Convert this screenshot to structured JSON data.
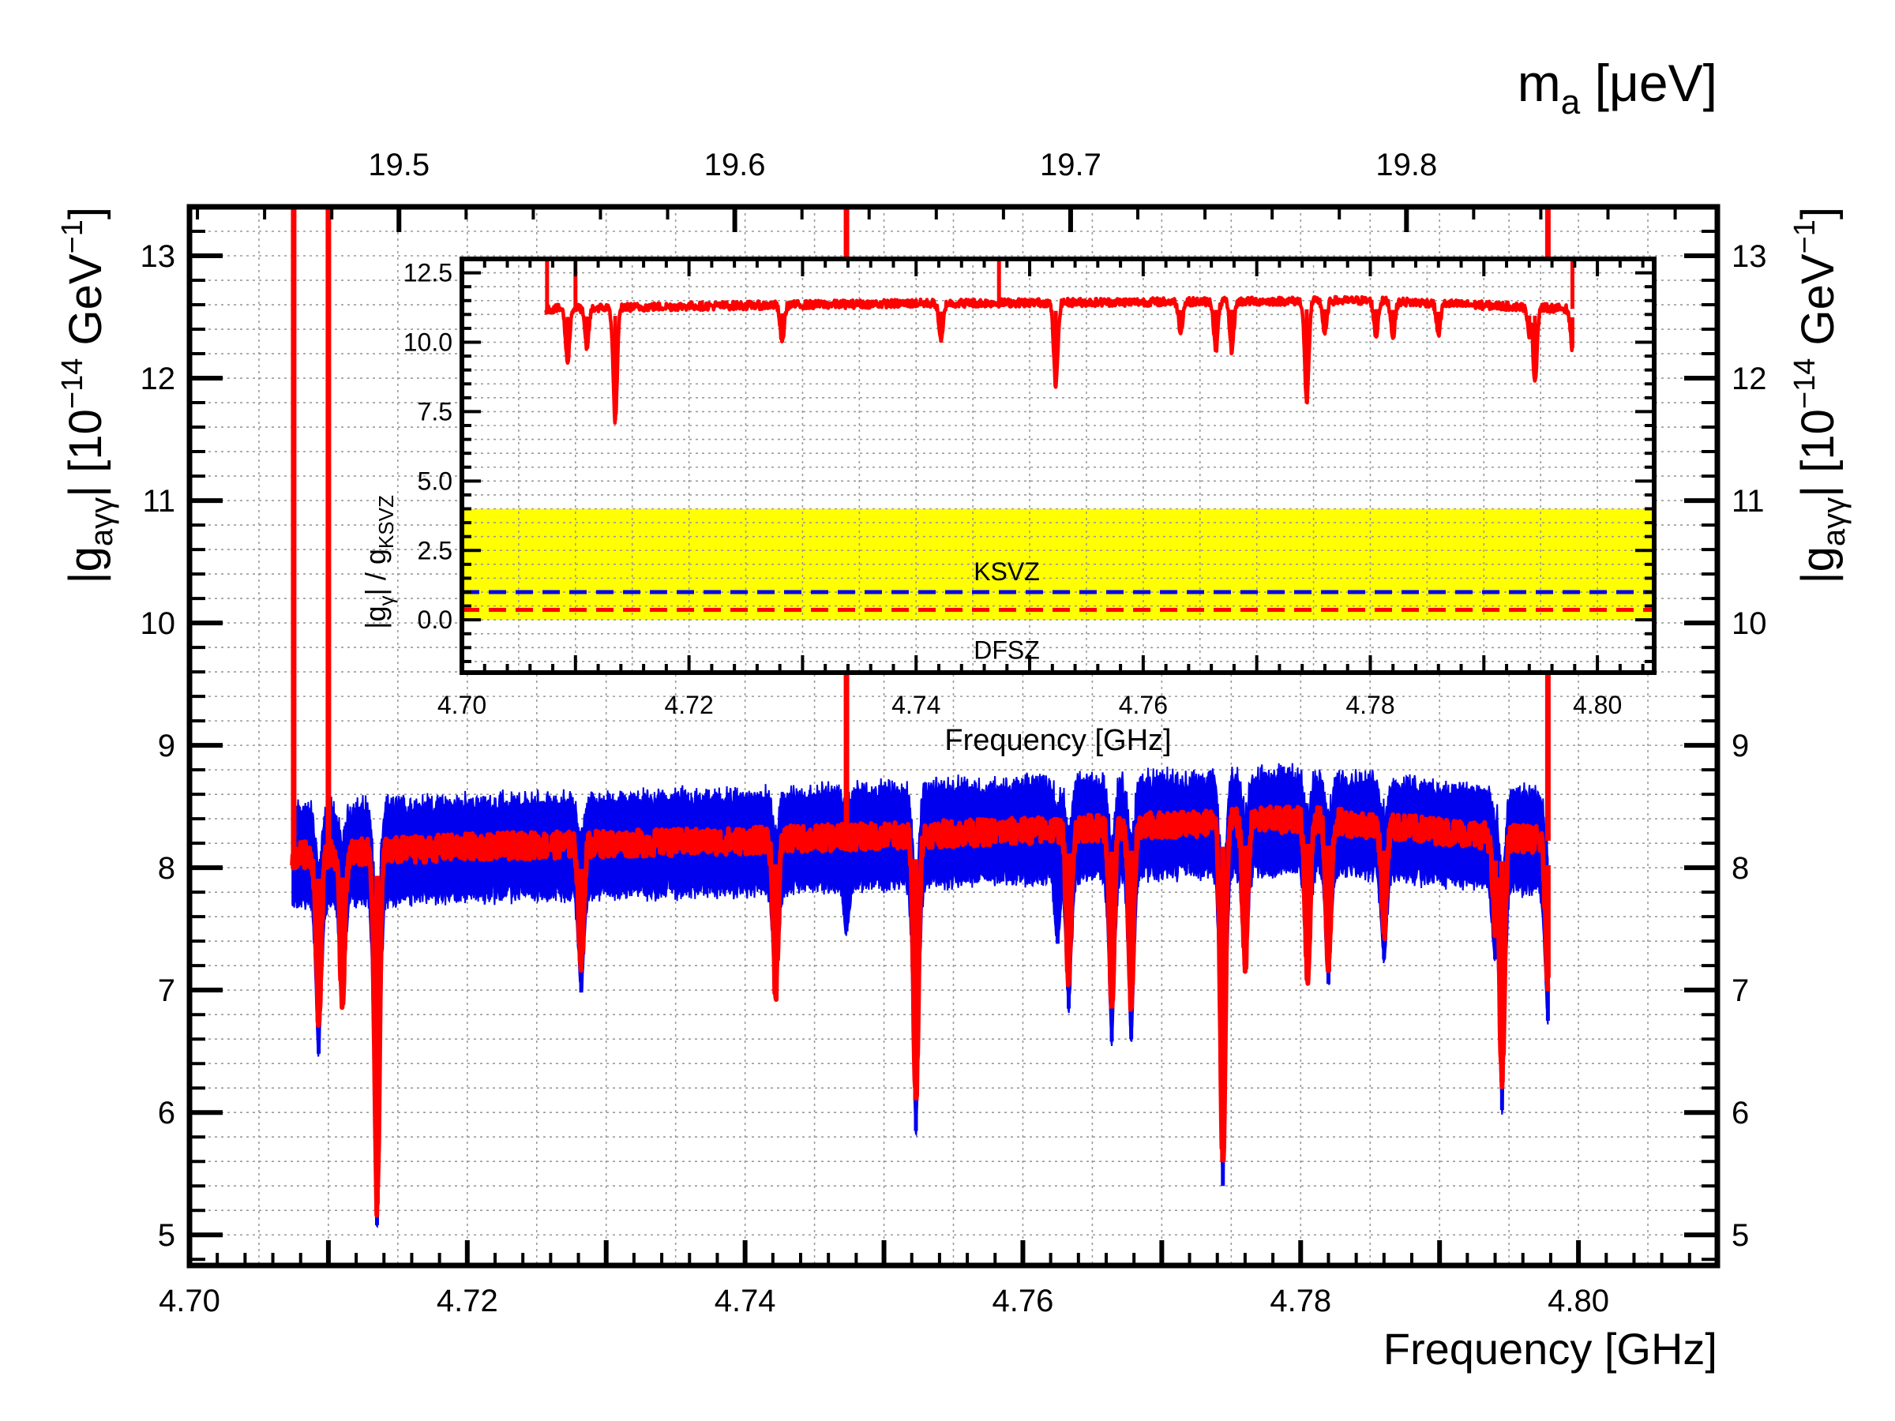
{
  "chart_data": [
    {
      "type": "line",
      "xlabel": "Frequency [GHz]",
      "ylabel_main": "|g",
      "ylabel_sub": "aγγ",
      "ylabel_unit": "|  [10",
      "ylabel_exp": "−14",
      "ylabel_gev": " GeV",
      "ylabel_gev_exp": "−1",
      "ylabel_close": "]",
      "top_axis_label": "m",
      "top_axis_label_sub": "a",
      "top_axis_label_unit": " [μeV]",
      "xlim": [
        4.7,
        4.81
      ],
      "ylim": [
        4.75,
        13.4
      ],
      "x_ticks": [
        4.7,
        4.72,
        4.74,
        4.76,
        4.78,
        4.8
      ],
      "x_tick_labels": [
        "4.70",
        "4.72",
        "4.74",
        "4.76",
        "4.78",
        "4.80"
      ],
      "y_ticks": [
        5,
        6,
        7,
        8,
        9,
        10,
        11,
        12,
        13
      ],
      "y_tick_labels": [
        "5",
        "6",
        "7",
        "8",
        "9",
        "10",
        "11",
        "12",
        "13"
      ],
      "top_ticks_ueV": [
        19.5,
        19.6,
        19.7,
        19.8
      ],
      "top_tick_labels": [
        "19.5",
        "19.6",
        "19.7",
        "19.8"
      ],
      "grid": true,
      "series": [
        {
          "color": "#0000ee",
          "style": "band",
          "x_range": [
            4.7074,
            4.7978
          ],
          "baseline_center": [
            [
              4.7074,
              8.1
            ],
            [
              4.72,
              8.15
            ],
            [
              4.74,
              8.2
            ],
            [
              4.76,
              8.3
            ],
            [
              4.78,
              8.38
            ],
            [
              4.7978,
              8.2
            ]
          ],
          "half_width": 0.38,
          "dips": [
            [
              4.7093,
              6.48
            ],
            [
              4.711,
              6.88
            ],
            [
              4.7135,
              5.08
            ],
            [
              4.7282,
              6.98
            ],
            [
              4.7422,
              6.98
            ],
            [
              4.7473,
              7.48
            ],
            [
              4.7523,
              5.85
            ],
            [
              4.7625,
              7.38
            ],
            [
              4.7633,
              6.85
            ],
            [
              4.7664,
              6.58
            ],
            [
              4.7678,
              6.6
            ],
            [
              4.7744,
              5.4
            ],
            [
              4.776,
              7.2
            ],
            [
              4.7805,
              7.1
            ],
            [
              4.782,
              7.05
            ],
            [
              4.786,
              7.25
            ],
            [
              4.794,
              7.25
            ],
            [
              4.7945,
              6.02
            ],
            [
              4.7978,
              6.75
            ]
          ]
        },
        {
          "color": "#ff0000",
          "style": "line",
          "x_range": [
            4.7074,
            4.7978
          ],
          "baseline": [
            [
              4.7074,
              8.1
            ],
            [
              4.72,
              8.17
            ],
            [
              4.74,
              8.22
            ],
            [
              4.76,
              8.3
            ],
            [
              4.78,
              8.4
            ],
            [
              4.7978,
              8.22
            ]
          ],
          "dips": [
            [
              4.7093,
              6.75
            ],
            [
              4.711,
              6.92
            ],
            [
              4.7135,
              5.25
            ],
            [
              4.7282,
              7.22
            ],
            [
              4.7422,
              7.0
            ],
            [
              4.7523,
              6.1
            ],
            [
              4.7633,
              7.1
            ],
            [
              4.7664,
              6.85
            ],
            [
              4.7678,
              6.85
            ],
            [
              4.7744,
              5.6
            ],
            [
              4.776,
              7.2
            ],
            [
              4.7805,
              7.1
            ],
            [
              4.782,
              7.15
            ],
            [
              4.786,
              7.5
            ],
            [
              4.794,
              7.5
            ],
            [
              4.7945,
              6.25
            ],
            [
              4.7978,
              7.1
            ]
          ],
          "spikes_to_top": [
            4.7075,
            4.71,
            4.7473,
            4.7978
          ]
        }
      ]
    },
    {
      "type": "line",
      "xlabel": "Frequency [GHz]",
      "ylabel_main": "|g",
      "ylabel_sub": "γ",
      "ylabel_mid": "| / g",
      "ylabel_sub2": "KSVZ",
      "xlim": [
        4.7,
        4.805
      ],
      "ylim": [
        -1.9,
        13.0
      ],
      "x_ticks": [
        4.7,
        4.72,
        4.74,
        4.76,
        4.78,
        4.8
      ],
      "x_tick_labels": [
        "4.70",
        "4.72",
        "4.74",
        "4.76",
        "4.78",
        "4.80"
      ],
      "y_ticks": [
        0.0,
        2.5,
        5.0,
        7.5,
        10.0,
        12.5
      ],
      "y_tick_labels": [
        "0.0",
        "2.5",
        "5.0",
        "7.5",
        "10.0",
        "12.5"
      ],
      "grid": true,
      "band": {
        "color": "#ffff00",
        "y_range": [
          0.0,
          4.0
        ]
      },
      "reference_lines": [
        {
          "name": "KSVZ",
          "y": 1.0,
          "color": "#0000ee",
          "style": "dashed"
        },
        {
          "name": "DFSZ",
          "y": 0.36,
          "color": "#ff0000",
          "style": "dashed"
        }
      ],
      "series": [
        {
          "color": "#ff0000",
          "x_range": [
            4.7074,
            4.7978
          ],
          "baseline": [
            [
              4.7074,
              11.2
            ],
            [
              4.72,
              11.3
            ],
            [
              4.74,
              11.4
            ],
            [
              4.76,
              11.45
            ],
            [
              4.78,
              11.5
            ],
            [
              4.7978,
              11.2
            ]
          ],
          "dips": [
            [
              4.7093,
              9.3
            ],
            [
              4.711,
              9.8
            ],
            [
              4.7135,
              7.2
            ],
            [
              4.7282,
              10.0
            ],
            [
              4.7422,
              10.0
            ],
            [
              4.7523,
              8.4
            ],
            [
              4.7633,
              10.4
            ],
            [
              4.7664,
              9.7
            ],
            [
              4.7678,
              9.7
            ],
            [
              4.7744,
              7.8
            ],
            [
              4.776,
              10.3
            ],
            [
              4.7805,
              10.2
            ],
            [
              4.782,
              10.2
            ],
            [
              4.786,
              10.3
            ],
            [
              4.794,
              10.3
            ],
            [
              4.7945,
              8.6
            ],
            [
              4.7978,
              9.8
            ]
          ],
          "spikes_to_top": [
            4.7075,
            4.71,
            4.7473,
            4.7978
          ]
        }
      ]
    }
  ]
}
